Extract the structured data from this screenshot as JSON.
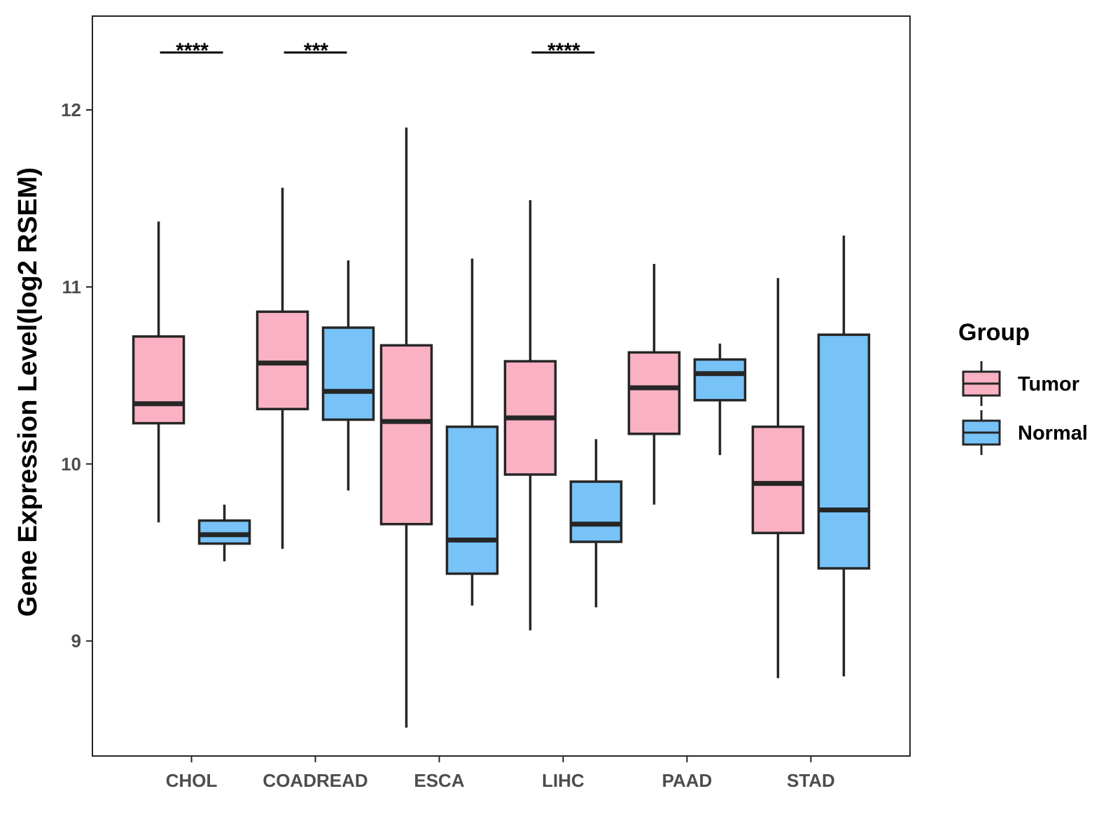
{
  "chart_data": {
    "type": "boxplot",
    "title": "",
    "xlabel": "",
    "ylabel": "Gene Expression Level(log2 RSEM)",
    "ylim": [
      8.35,
      12.53
    ],
    "yticks": [
      9,
      10,
      11,
      12
    ],
    "categories": [
      "CHOL",
      "COADREAD",
      "ESCA",
      "LIHC",
      "PAAD",
      "STAD"
    ],
    "legend": {
      "title": "Group",
      "position": "right"
    },
    "series": [
      {
        "name": "Tumor",
        "color": "#F9B1C3",
        "boxes": [
          {
            "category": "CHOL",
            "min": 9.67,
            "q1": 10.23,
            "median": 10.34,
            "q3": 10.72,
            "max": 11.37
          },
          {
            "category": "COADREAD",
            "min": 9.52,
            "q1": 10.31,
            "median": 10.57,
            "q3": 10.86,
            "max": 11.56
          },
          {
            "category": "ESCA",
            "min": 8.51,
            "q1": 9.66,
            "median": 10.24,
            "q3": 10.67,
            "max": 11.9
          },
          {
            "category": "LIHC",
            "min": 9.06,
            "q1": 9.94,
            "median": 10.26,
            "q3": 10.58,
            "max": 11.49
          },
          {
            "category": "PAAD",
            "min": 9.77,
            "q1": 10.17,
            "median": 10.43,
            "q3": 10.63,
            "max": 11.13
          },
          {
            "category": "STAD",
            "min": 8.79,
            "q1": 9.61,
            "median": 9.89,
            "q3": 10.21,
            "max": 11.05
          }
        ]
      },
      {
        "name": "Normal",
        "color": "#77C2F7",
        "boxes": [
          {
            "category": "CHOL",
            "min": 9.45,
            "q1": 9.55,
            "median": 9.6,
            "q3": 9.68,
            "max": 9.77
          },
          {
            "category": "COADREAD",
            "min": 9.85,
            "q1": 10.25,
            "median": 10.41,
            "q3": 10.77,
            "max": 11.15
          },
          {
            "category": "ESCA",
            "min": 9.2,
            "q1": 9.38,
            "median": 9.57,
            "q3": 10.21,
            "max": 11.16
          },
          {
            "category": "LIHC",
            "min": 9.19,
            "q1": 9.56,
            "median": 9.66,
            "q3": 9.9,
            "max": 10.14
          },
          {
            "category": "PAAD",
            "min": 10.05,
            "q1": 10.36,
            "median": 10.51,
            "q3": 10.59,
            "max": 10.68
          },
          {
            "category": "STAD",
            "min": 8.8,
            "q1": 9.41,
            "median": 9.74,
            "q3": 10.73,
            "max": 11.29
          }
        ]
      }
    ],
    "significance": [
      {
        "category": "CHOL",
        "label": "****"
      },
      {
        "category": "COADREAD",
        "label": "***"
      },
      {
        "category": "LIHC",
        "label": "****"
      }
    ]
  }
}
